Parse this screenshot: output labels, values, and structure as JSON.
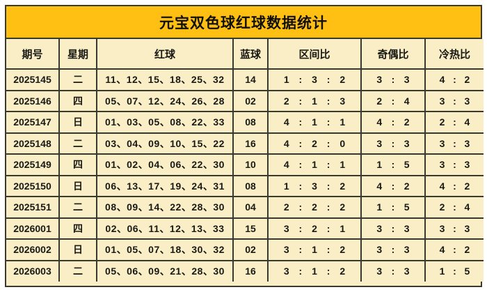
{
  "title": "元宝双色球红球数据统计",
  "colors": {
    "title_background": "#ffc013",
    "cell_background": "#faeec6",
    "week_column_background": "#a7cc92",
    "red_ball_text": "#fb2418",
    "blue_ball_text": "#2a23dc",
    "border": "#3a392d"
  },
  "table": {
    "headers": [
      "期号",
      "星期",
      "红球",
      "蓝球",
      "区间比",
      "奇偶比",
      "冷热比"
    ],
    "rows": [
      {
        "period": "2025145",
        "week": "二",
        "reds": [
          "11",
          "12",
          "15",
          "18",
          "25",
          "32"
        ],
        "blue": "14",
        "zone_ratio": "1:3:2",
        "odd_even_ratio": "3:3",
        "cold_hot_ratio": "4:2"
      },
      {
        "period": "2025146",
        "week": "四",
        "reds": [
          "05",
          "07",
          "12",
          "24",
          "26",
          "28"
        ],
        "blue": "02",
        "zone_ratio": "2:1:3",
        "odd_even_ratio": "2:4",
        "cold_hot_ratio": "3:3"
      },
      {
        "period": "2025147",
        "week": "日",
        "reds": [
          "01",
          "03",
          "05",
          "08",
          "22",
          "33"
        ],
        "blue": "08",
        "zone_ratio": "4:1:1",
        "odd_even_ratio": "4:2",
        "cold_hot_ratio": "2:4"
      },
      {
        "period": "2025148",
        "week": "二",
        "reds": [
          "03",
          "04",
          "09",
          "10",
          "15",
          "22"
        ],
        "blue": "16",
        "zone_ratio": "4:2:0",
        "odd_even_ratio": "3:3",
        "cold_hot_ratio": "3:3"
      },
      {
        "period": "2025149",
        "week": "四",
        "reds": [
          "01",
          "02",
          "04",
          "06",
          "22",
          "30"
        ],
        "blue": "10",
        "zone_ratio": "4:1:1",
        "odd_even_ratio": "1:5",
        "cold_hot_ratio": "3:3"
      },
      {
        "period": "2025150",
        "week": "日",
        "reds": [
          "06",
          "13",
          "17",
          "19",
          "24",
          "31"
        ],
        "blue": "08",
        "zone_ratio": "1:3:2",
        "odd_even_ratio": "4:2",
        "cold_hot_ratio": "4:2"
      },
      {
        "period": "2025151",
        "week": "二",
        "reds": [
          "08",
          "09",
          "14",
          "22",
          "28",
          "30"
        ],
        "blue": "04",
        "zone_ratio": "2:2:2",
        "odd_even_ratio": "1:5",
        "cold_hot_ratio": "2:4"
      },
      {
        "period": "2026001",
        "week": "四",
        "reds": [
          "02",
          "06",
          "11",
          "12",
          "13",
          "33"
        ],
        "blue": "15",
        "zone_ratio": "3:2:1",
        "odd_even_ratio": "3:3",
        "cold_hot_ratio": "3:3"
      },
      {
        "period": "2026002",
        "week": "日",
        "reds": [
          "01",
          "05",
          "07",
          "18",
          "30",
          "32"
        ],
        "blue": "02",
        "zone_ratio": "3:1:2",
        "odd_even_ratio": "3:3",
        "cold_hot_ratio": "4:2"
      },
      {
        "period": "2026003",
        "week": "二",
        "reds": [
          "05",
          "06",
          "09",
          "21",
          "28",
          "30"
        ],
        "blue": "16",
        "zone_ratio": "3:1:2",
        "odd_even_ratio": "3:3",
        "cold_hot_ratio": "1:5"
      }
    ],
    "red_separator": "、",
    "ratio_separator": ":"
  }
}
